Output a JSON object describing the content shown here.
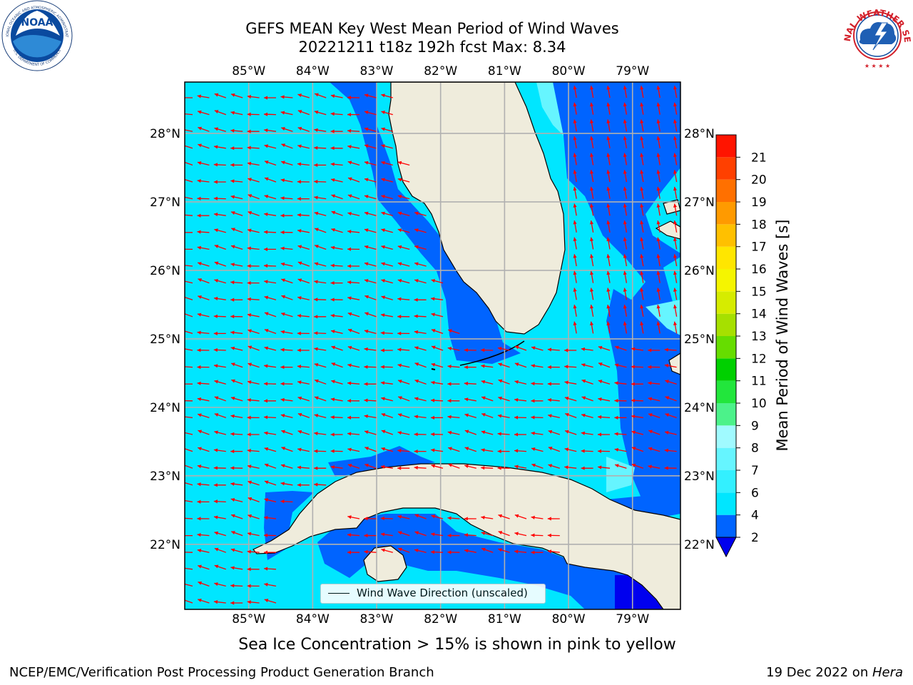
{
  "title": {
    "line1": "GEFS MEAN Key West Mean Period of Wind Waves",
    "line2": "20221211 t18z 192h fcst   Max: 8.34"
  },
  "logos": {
    "noaa": {
      "text": "NOAA",
      "ring_top": "NATIONAL OCEANIC AND ATMOSPHERIC ADMINISTRATION",
      "ring_bottom": "U.S. DEPARTMENT OF COMMERCE",
      "color": "#1a5fa8"
    },
    "nws": {
      "ring": "NATIONAL WEATHER SERVICE",
      "color": "#d3202a"
    }
  },
  "map": {
    "lon_labels": [
      "85°W",
      "84°W",
      "83°W",
      "82°W",
      "81°W",
      "80°W",
      "79°W"
    ],
    "lat_labels": [
      "28°N",
      "27°N",
      "26°N",
      "25°N",
      "24°N",
      "23°N",
      "22°N"
    ],
    "lon_values": [
      -85,
      -84,
      -83,
      -82,
      -81,
      -80,
      -79
    ],
    "lat_values": [
      28,
      27,
      26,
      25,
      24,
      23,
      22
    ],
    "extent": {
      "lon_min": -86,
      "lon_max": -78.25,
      "lat_min": 21.05,
      "lat_max": 28.75
    },
    "land_color": "#efecdc",
    "arrow_color": "#ff0000",
    "legend_label": "Wind Wave Direction (unscaled)",
    "sea_ice_note": "Sea Ice Concentration > 15% is shown in pink to yellow"
  },
  "colorbar": {
    "label": "Mean Period of Wind Waves [s]",
    "ticks": [
      "2",
      "4",
      "6",
      "7",
      "8",
      "9",
      "10",
      "11",
      "12",
      "13",
      "14",
      "15",
      "16",
      "17",
      "18",
      "19",
      "20",
      "21"
    ],
    "colors": [
      "#0064ff",
      "#00e6ff",
      "#33f0ff",
      "#66f5ff",
      "#a0faff",
      "#4cf28a",
      "#22e63c",
      "#00d000",
      "#66dd00",
      "#a6e000",
      "#d6ec00",
      "#f5f500",
      "#ffe600",
      "#ffc000",
      "#ff9a00",
      "#ff7000",
      "#ff4000",
      "#ff1400"
    ],
    "extend_color": "#0000ee"
  },
  "footer": {
    "left": "NCEP/EMC/Verification Post Processing Product Generation Branch",
    "right_prefix": "19 Dec 2022 on ",
    "right_host": "Hera"
  },
  "chart_data": {
    "type": "heatmap",
    "title": "GEFS MEAN Key West Mean Period of Wind Waves",
    "subtitle": "20221211 t18z 192h fcst   Max: 8.34",
    "max_value": 8.34,
    "colorbar_range": [
      2,
      21
    ],
    "units": "s"
  }
}
